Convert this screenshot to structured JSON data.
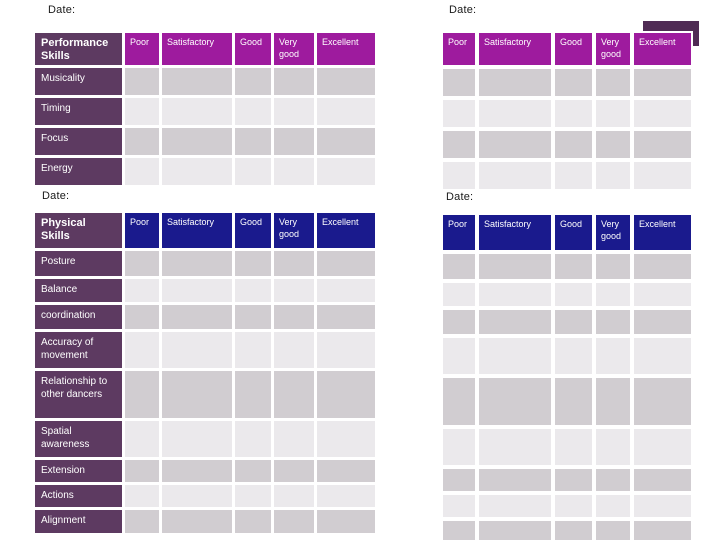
{
  "slide": {
    "background": "#ffffff"
  },
  "colors": {
    "label_bg": "#5d3a61",
    "rating_header_performance": "#9e1b9e",
    "rating_header_physical": "#1a1a8d",
    "cell_dark": "#d1cdd1",
    "cell_light": "#ebe9ec",
    "accent_shape": "#4f2b54",
    "text_light": "#ffffff",
    "text_dark": "#1a1a1a"
  },
  "date_label": "Date:",
  "ratings": [
    "Poor",
    "Satisfactory",
    "Good",
    "Very good",
    "Excellent"
  ],
  "tables": {
    "performance": {
      "title": "Performance Skills",
      "rows": [
        "Musicality",
        "Timing",
        "Focus",
        "Energy"
      ]
    },
    "physical": {
      "title": "Physical Skills",
      "rows": [
        "Posture",
        "Balance",
        "coordination",
        "Accuracy of movement",
        "Relationship to other dancers",
        "Spatial awareness",
        "Extension",
        "Actions",
        "Alignment"
      ]
    }
  }
}
